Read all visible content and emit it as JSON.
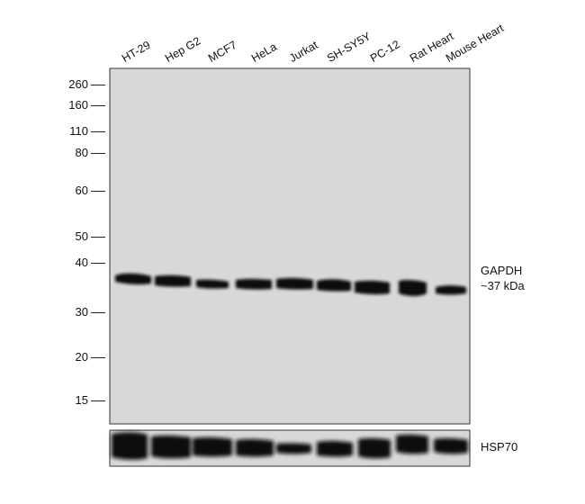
{
  "lanes": [
    "HT-29",
    "Hep G2",
    "MCF7",
    "HeLa",
    "Jurkat",
    "SH-SY5Y",
    "PC-12",
    "Rat Heart",
    "Mouse Heart"
  ],
  "mw_markers": [
    "260",
    "160",
    "110",
    "80",
    "60",
    "50",
    "40",
    "30",
    "20",
    "15"
  ],
  "target": {
    "name": "GAPDH",
    "size": "~37 kDa"
  },
  "loading_control": {
    "name": "HSP70"
  },
  "colors": {
    "membrane": "#d8d8d8",
    "band": "#111111",
    "border": "#333333"
  }
}
